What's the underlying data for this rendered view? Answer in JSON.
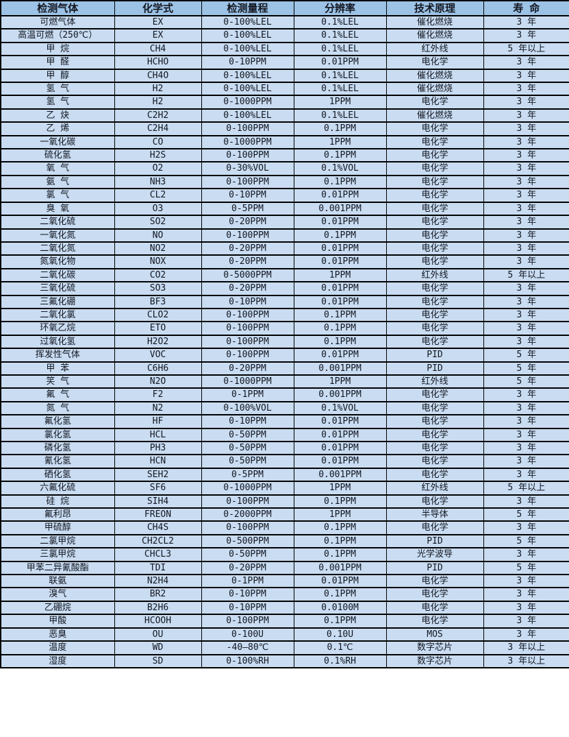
{
  "colors": {
    "header_bg": "#9cc2e5",
    "row_bg": "#c9dcf1",
    "border": "#000000",
    "text": "#131722"
  },
  "table": {
    "headers": [
      "检测气体",
      "化学式",
      "检测量程",
      "分辨率",
      "技术原理",
      "寿 命"
    ],
    "column_keys": [
      "gas",
      "formula",
      "range",
      "resolution",
      "principle",
      "lifespan"
    ],
    "rows": [
      [
        "可燃气体",
        "EX",
        "0-100%LEL",
        "0.1%LEL",
        "催化燃烧",
        "3 年"
      ],
      [
        "高温可燃（250℃）",
        "EX",
        "0-100%LEL",
        "0.1%LEL",
        "催化燃烧",
        "3 年"
      ],
      [
        "甲 烷",
        "CH4",
        "0-100%LEL",
        "0.1%LEL",
        "红外线",
        "5 年以上"
      ],
      [
        "甲 醛",
        "HCHO",
        "0-10PPM",
        "0.01PPM",
        "电化学",
        "3 年"
      ],
      [
        "甲 醇",
        "CH4O",
        "0-100%LEL",
        "0.1%LEL",
        "催化燃烧",
        "3 年"
      ],
      [
        "氢 气",
        "H2",
        "0-100%LEL",
        "0.1%LEL",
        "催化燃烧",
        "3 年"
      ],
      [
        "氢 气",
        "H2",
        "0-1000PPM",
        "1PPM",
        "电化学",
        "3 年"
      ],
      [
        "乙 炔",
        "C2H2",
        "0-100%LEL",
        "0.1%LEL",
        "催化燃烧",
        "3 年"
      ],
      [
        "乙 烯",
        "C2H4",
        "0-100PPM",
        "0.1PPM",
        "电化学",
        "3 年"
      ],
      [
        "一氧化碳",
        "CO",
        "0-1000PPM",
        "1PPM",
        "电化学",
        "3 年"
      ],
      [
        "硫化氢",
        "H2S",
        "0-100PPM",
        "0.1PPM",
        "电化学",
        "3 年"
      ],
      [
        "氧 气",
        "O2",
        "0-30%VOL",
        "0.1%VOL",
        "电化学",
        "3 年"
      ],
      [
        "氨 气",
        "NH3",
        "0-100PPM",
        "0.1PPM",
        "电化学",
        "3 年"
      ],
      [
        "氯 气",
        "CL2",
        "0-10PPM",
        "0.01PPM",
        "电化学",
        "3 年"
      ],
      [
        "臭 氧",
        "O3",
        "0-5PPM",
        "0.001PPM",
        "电化学",
        "3 年"
      ],
      [
        "二氧化硫",
        "SO2",
        "0-20PPM",
        "0.01PPM",
        "电化学",
        "3 年"
      ],
      [
        "一氧化氮",
        "NO",
        "0-100PPM",
        "0.1PPM",
        "电化学",
        "3 年"
      ],
      [
        "二氧化氮",
        "NO2",
        "0-20PPM",
        "0.01PPM",
        "电化学",
        "3 年"
      ],
      [
        "氮氧化物",
        "NOX",
        "0-20PPM",
        "0.01PPM",
        "电化学",
        "3 年"
      ],
      [
        "二氧化碳",
        "CO2",
        "0-5000PPM",
        "1PPM",
        "红外线",
        "5 年以上"
      ],
      [
        "三氧化硫",
        "SO3",
        "0-20PPM",
        "0.01PPM",
        "电化学",
        "3 年"
      ],
      [
        "三氟化硼",
        "BF3",
        "0-10PPM",
        "0.01PPM",
        "电化学",
        "3 年"
      ],
      [
        "二氧化氯",
        "CLO2",
        "0-100PPM",
        "0.1PPM",
        "电化学",
        "3 年"
      ],
      [
        "环氧乙烷",
        "ETO",
        "0-100PPM",
        "0.1PPM",
        "电化学",
        "3 年"
      ],
      [
        "过氧化氢",
        "H2O2",
        "0-100PPM",
        "0.1PPM",
        "电化学",
        "3 年"
      ],
      [
        "挥发性气体",
        "VOC",
        "0-100PPM",
        "0.01PPM",
        "PID",
        "5 年"
      ],
      [
        "甲 苯",
        "C6H6",
        "0-20PPM",
        "0.001PPM",
        "PID",
        "5 年"
      ],
      [
        "笑 气",
        "N2O",
        "0-1000PPM",
        "1PPM",
        "红外线",
        "5 年"
      ],
      [
        "氟 气",
        "F2",
        "0-1PPM",
        "0.001PPM",
        "电化学",
        "3 年"
      ],
      [
        "氮 气",
        "N2",
        "0-100%VOL",
        "0.1%VOL",
        "电化学",
        "3 年"
      ],
      [
        "氟化氢",
        "HF",
        "0-10PPM",
        "0.01PPM",
        "电化学",
        "3 年"
      ],
      [
        "氯化氢",
        "HCL",
        "0-50PPM",
        "0.01PPM",
        "电化学",
        "3 年"
      ],
      [
        "磷化氢",
        "PH3",
        "0-50PPM",
        "0.01PPM",
        "电化学",
        "3 年"
      ],
      [
        "氰化氢",
        "HCN",
        "0-50PPM",
        "0.01PPM",
        "电化学",
        "3 年"
      ],
      [
        "硒化氢",
        "SEH2",
        "0-5PPM",
        "0.001PPM",
        "电化学",
        "3 年"
      ],
      [
        "六氟化硫",
        "SF6",
        "0-1000PPM",
        "1PPM",
        "红外线",
        "5 年以上"
      ],
      [
        "硅 烷",
        "SIH4",
        "0-100PPM",
        "0.1PPM",
        "电化学",
        "3 年"
      ],
      [
        "氟利昂",
        "FREON",
        "0-2000PPM",
        "1PPM",
        "半导体",
        "5 年"
      ],
      [
        "甲硫醇",
        "CH4S",
        "0-100PPM",
        "0.1PPM",
        "电化学",
        "3 年"
      ],
      [
        "二氯甲烷",
        "CH2CL2",
        "0-500PPM",
        "0.1PPM",
        "PID",
        "5 年"
      ],
      [
        "三氯甲烷",
        "CHCL3",
        "0-50PPM",
        "0.1PPM",
        "光学波导",
        "3 年"
      ],
      [
        "甲苯二异氰酸酯",
        "TDI",
        "0-20PPM",
        "0.001PPM",
        "PID",
        "5 年"
      ],
      [
        "联氨",
        "N2H4",
        "0-1PPM",
        "0.01PPM",
        "电化学",
        "3 年"
      ],
      [
        "溴气",
        "BR2",
        "0-10PPM",
        "0.1PPM",
        "电化学",
        "3 年"
      ],
      [
        "乙硼烷",
        "B2H6",
        "0-10PPM",
        "0.0100M",
        "电化学",
        "3 年"
      ],
      [
        "甲酸",
        "HCOOH",
        "0-100PPM",
        "0.1PPM",
        "电化学",
        "3 年"
      ],
      [
        "恶臭",
        "OU",
        "0-100U",
        "0.10U",
        "MOS",
        "3 年"
      ],
      [
        "温度",
        "WD",
        "-40—80℃",
        "0.1℃",
        "数字芯片",
        "3 年以上"
      ],
      [
        "湿度",
        "SD",
        "0-100%RH",
        "0.1%RH",
        "数字芯片",
        "3 年以上"
      ]
    ]
  }
}
